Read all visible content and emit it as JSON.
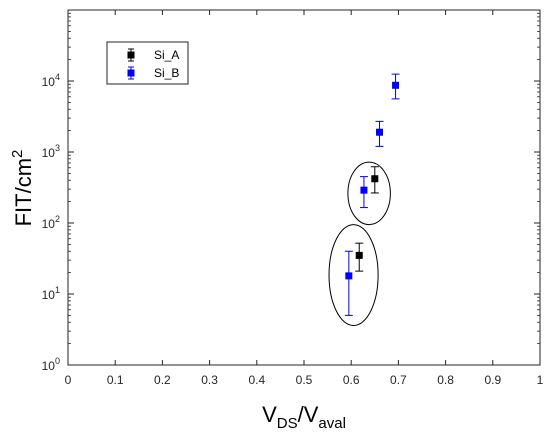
{
  "chart_data": {
    "type": "scatter",
    "xlabel": {
      "main": "V",
      "sub1": "DS",
      "sep": "/V",
      "sub2": "aval"
    },
    "ylabel": {
      "main": "FIT/cm",
      "sup": "2"
    },
    "xlim": [
      0,
      1
    ],
    "ylim": [
      1,
      100000
    ],
    "yscale": "log",
    "x_ticks": [
      {
        "value": 0,
        "label": "0"
      },
      {
        "value": 0.1,
        "label": "0.1"
      },
      {
        "value": 0.2,
        "label": "0.2"
      },
      {
        "value": 0.3,
        "label": "0.3"
      },
      {
        "value": 0.4,
        "label": "0.4"
      },
      {
        "value": 0.5,
        "label": "0.5"
      },
      {
        "value": 0.6,
        "label": "0.6"
      },
      {
        "value": 0.7,
        "label": "0.7"
      },
      {
        "value": 0.8,
        "label": "0.8"
      },
      {
        "value": 0.9,
        "label": "0.9"
      },
      {
        "value": 1,
        "label": "1"
      }
    ],
    "y_ticks": [
      {
        "value": 1,
        "base": "10",
        "exp": "0"
      },
      {
        "value": 10,
        "base": "10",
        "exp": "1"
      },
      {
        "value": 100,
        "base": "10",
        "exp": "2"
      },
      {
        "value": 1000,
        "base": "10",
        "exp": "3"
      },
      {
        "value": 10000,
        "base": "10",
        "exp": "4"
      }
    ],
    "legend_position": "top-left",
    "grid": false,
    "series": [
      {
        "name": "Si_A",
        "color": "#000000",
        "points": [
          {
            "x": 0.617,
            "y": 35,
            "ylow": 21,
            "yhigh": 52
          },
          {
            "x": 0.65,
            "y": 420,
            "ylow": 265,
            "yhigh": 620
          }
        ]
      },
      {
        "name": "Si_B",
        "color": "#0000ff",
        "points": [
          {
            "x": 0.595,
            "y": 18,
            "ylow": 5,
            "yhigh": 40
          },
          {
            "x": 0.627,
            "y": 290,
            "ylow": 165,
            "yhigh": 450
          },
          {
            "x": 0.66,
            "y": 1900,
            "ylow": 1200,
            "yhigh": 2700
          },
          {
            "x": 0.694,
            "y": 8700,
            "ylow": 5600,
            "yhigh": 12500
          }
        ]
      }
    ],
    "annotations": [
      {
        "shape": "ellipse",
        "cx": 0.638,
        "cy": 300,
        "x_halfwidth": 0.045,
        "ymin": 95,
        "ymax": 720
      },
      {
        "shape": "ellipse",
        "cx": 0.605,
        "cy": 18,
        "x_halfwidth": 0.052,
        "ymin": 3.6,
        "ymax": 95
      }
    ]
  }
}
